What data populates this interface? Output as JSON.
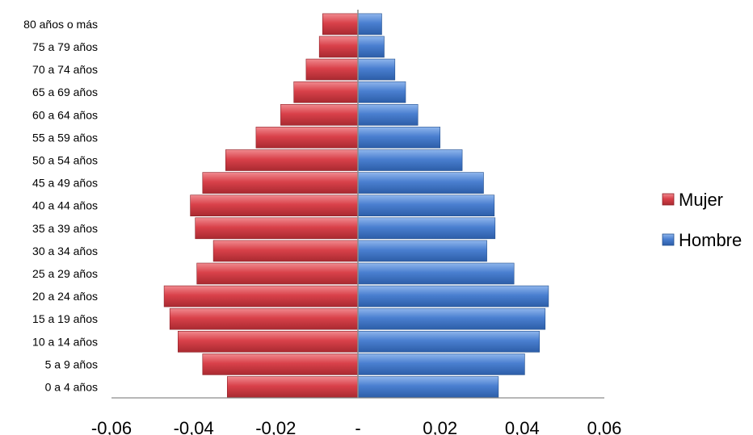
{
  "chart_data": {
    "type": "bar",
    "orientation": "horizontal",
    "style": "population-pyramid",
    "categories": [
      "0 a 4 años",
      "5 a 9 años",
      "10 a 14 años",
      "15 a 19 años",
      "20 a 24 años",
      "25 a 29 años",
      "30 a 34 años",
      "35 a 39 años",
      "40 a 44 años",
      "45 a 49 años",
      "50 a 54 años",
      "55 a 59 años",
      "60 a 64 años",
      "65 a 69 años",
      "70 a 74 años",
      "75 a 79 años",
      "80 años o más"
    ],
    "series": [
      {
        "name": "Mujer",
        "color": "#d9414a",
        "values": [
          -0.0318,
          -0.0378,
          -0.0438,
          -0.0458,
          -0.0472,
          -0.0392,
          -0.0352,
          -0.0396,
          -0.0408,
          -0.0378,
          -0.0322,
          -0.0248,
          -0.0188,
          -0.0156,
          -0.0126,
          -0.0094,
          -0.0086
        ]
      },
      {
        "name": "Hombre",
        "color": "#4a7fd0",
        "values": [
          0.0342,
          0.0406,
          0.0442,
          0.0456,
          0.0464,
          0.038,
          0.0314,
          0.0334,
          0.0332,
          0.0306,
          0.0254,
          0.02,
          0.0146,
          0.0116,
          0.009,
          0.0064,
          0.0058
        ]
      }
    ],
    "xlim": [
      -0.06,
      0.06
    ],
    "xticks": [
      "-0,06",
      "-0,04",
      "-0,02",
      "-",
      "0,02",
      "0,04",
      "0,06"
    ],
    "legend": "right",
    "grid": false
  }
}
